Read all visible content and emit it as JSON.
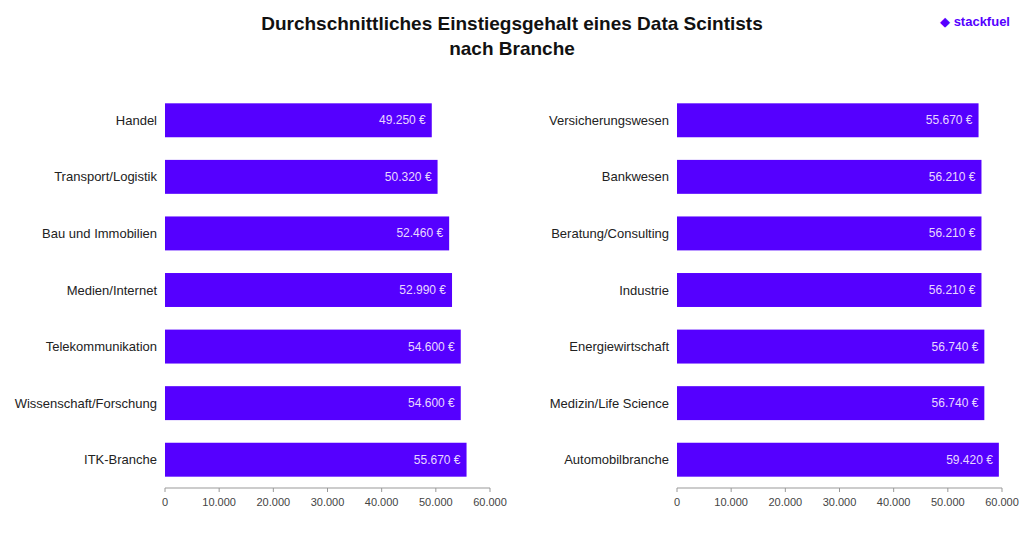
{
  "chart_data": [
    {
      "type": "bar",
      "orientation": "horizontal",
      "title": "Durchschnittliches Einstiegsgehalt eines Data Scintists\nnach Branche",
      "annotations": [
        "◆ stackfuel"
      ],
      "categories": [
        "Handel",
        "Transport/Logistik",
        "Bau und Immobilien",
        "Medien/Internet",
        "Telekommunikation",
        "Wissenschaft/Forschung",
        "ITK-Branche"
      ],
      "values": [
        49250,
        50320,
        52460,
        52990,
        54600,
        54600,
        55670
      ],
      "value_labels": [
        "49.250 €",
        "50.320 €",
        "52.460 €",
        "52.990 €",
        "54.600 €",
        "54.600 €",
        "55.670 €"
      ],
      "data_labels": true,
      "color": "#5500ff",
      "xlim": [
        0,
        60000
      ],
      "xticks": [
        0,
        {
          "value": 10000,
          "label": "10.000"
        },
        {
          "value": 20000,
          "label": "20.000"
        },
        {
          "value": 30000,
          "label": "30.000"
        },
        {
          "value": 40000,
          "label": "40.000"
        },
        {
          "value": 50000,
          "label": "50.000"
        },
        {
          "value": 60000,
          "label": "60.000"
        }
      ],
      "grid": false
    },
    {
      "type": "bar",
      "orientation": "horizontal",
      "categories": [
        "Versicherungswesen",
        "Bankwesen",
        "Beratung/Consulting",
        "Industrie",
        "Energiewirtschaft",
        "Medizin/Life Science",
        "Automobilbranche"
      ],
      "values": [
        55670,
        56210,
        56210,
        56210,
        56740,
        56740,
        59420
      ],
      "value_labels": [
        "55.670 €",
        "56.210 €",
        "56.210 €",
        "56.210 €",
        "56.740 €",
        "56.740 €",
        "59.420 €"
      ],
      "data_labels": true,
      "color": "#5500ff",
      "xlim": [
        0,
        60000
      ],
      "xticks": [
        0,
        {
          "value": 10000,
          "label": "10.000"
        },
        {
          "value": 20000,
          "label": "20.000"
        },
        {
          "value": 30000,
          "label": "30.000"
        },
        {
          "value": 40000,
          "label": "40.000"
        },
        {
          "value": 50000,
          "label": "50.000"
        },
        {
          "value": 60000,
          "label": "60.000"
        }
      ],
      "grid": false
    }
  ]
}
